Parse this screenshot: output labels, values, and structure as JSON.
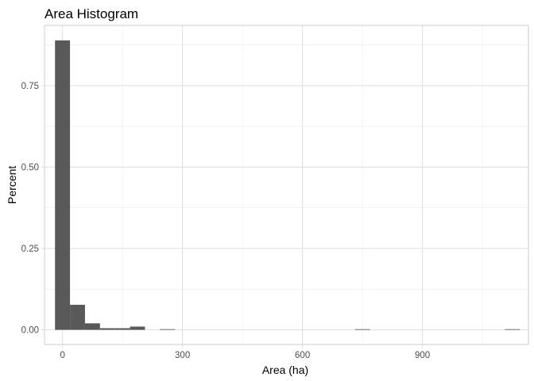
{
  "chart_data": {
    "type": "bar",
    "subtype": "histogram",
    "title": "Area Histogram",
    "xlabel": "Area (ha)",
    "ylabel": "Percent",
    "xlim": [
      -45,
      1165
    ],
    "ylim": [
      -0.045,
      0.935
    ],
    "x_ticks": [
      0,
      300,
      600,
      900
    ],
    "x_tick_labels": [
      "0",
      "300",
      "600",
      "900"
    ],
    "y_ticks": [
      0.0,
      0.25,
      0.5,
      0.75
    ],
    "y_tick_labels": [
      "0.00",
      "0.25",
      "0.50",
      "0.75"
    ],
    "grid": true,
    "bin_width": 37.5,
    "bins": [
      {
        "x_start": -18.75,
        "x_end": 18.75,
        "value": 0.889
      },
      {
        "x_start": 18.75,
        "x_end": 56.25,
        "value": 0.077
      },
      {
        "x_start": 56.25,
        "x_end": 93.75,
        "value": 0.02
      },
      {
        "x_start": 93.75,
        "x_end": 131.25,
        "value": 0.005
      },
      {
        "x_start": 131.25,
        "x_end": 168.75,
        "value": 0.005
      },
      {
        "x_start": 168.75,
        "x_end": 206.25,
        "value": 0.01
      },
      {
        "x_start": 243.75,
        "x_end": 281.25,
        "value": 0.002
      },
      {
        "x_start": 731.25,
        "x_end": 768.75,
        "value": 0.002
      },
      {
        "x_start": 1106.25,
        "x_end": 1143.75,
        "value": 0.002
      }
    ],
    "colors": {
      "bar_fill": "#595959",
      "grid_major": "#dedede",
      "grid_minor": "#ebebeb",
      "panel_border": "#cccccc",
      "tick": "#4d4d4d"
    }
  }
}
